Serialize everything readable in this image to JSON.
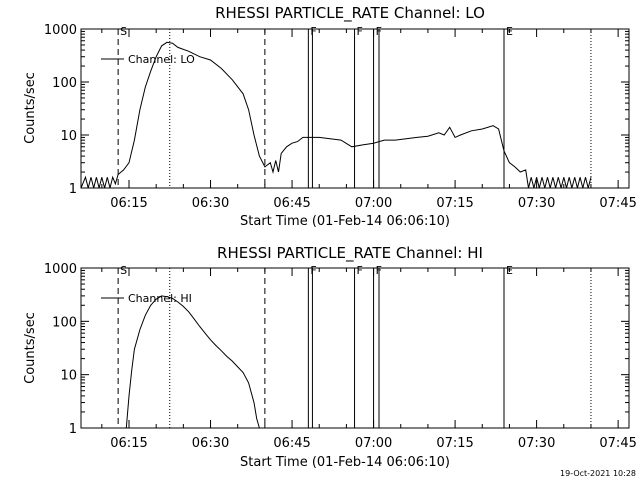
{
  "footer": {
    "date": "19-Oct-2021 10:28"
  },
  "colors": {
    "foreground": "#000000",
    "background": "#ffffff"
  },
  "chart_data": [
    {
      "type": "line",
      "title": "RHESSI PARTICLE_RATE Channel: LO",
      "xlabel": "Start Time (01-Feb-14 06:06:10)",
      "ylabel": "Counts/sec",
      "yscale": "log",
      "xlim": [
        "06:06:10",
        "07:47:00"
      ],
      "ylim": [
        1,
        1000
      ],
      "x_ticks": [
        "06:15",
        "06:30",
        "06:45",
        "07:00",
        "07:15",
        "07:30",
        "07:45"
      ],
      "y_ticks": [
        "1",
        "10",
        "100",
        "1000"
      ],
      "legend": {
        "label": "Channel: LO",
        "placement": "top-left"
      },
      "markers": [
        {
          "label": "S",
          "time": "06:13:00",
          "style": "dashed"
        },
        {
          "label": "",
          "time": "06:22:30",
          "style": "dotted"
        },
        {
          "label": "",
          "time": "06:40:00",
          "style": "dashed"
        },
        {
          "label": "F",
          "time": "06:48:00",
          "style": "solid"
        },
        {
          "label": "",
          "time": "06:48:45",
          "style": "solid"
        },
        {
          "label": "F",
          "time": "06:56:30",
          "style": "solid"
        },
        {
          "label": "F",
          "time": "07:00:00",
          "style": "solid"
        },
        {
          "label": "",
          "time": "07:01:00",
          "style": "solid"
        },
        {
          "label": "E",
          "time": "07:24:00",
          "style": "solid"
        },
        {
          "label": "",
          "time": "07:40:00",
          "style": "dotted"
        }
      ],
      "series": [
        {
          "x": [
            "06:06:10",
            "06:07:00",
            "06:07:30",
            "06:08:00",
            "06:08:30",
            "06:09:00",
            "06:09:30",
            "06:10:00",
            "06:10:30",
            "06:11:00",
            "06:11:30",
            "06:12:00",
            "06:12:30",
            "06:13:00",
            "06:14:00",
            "06:15:00",
            "06:16:00",
            "06:17:00",
            "06:18:00",
            "06:19:00",
            "06:20:00",
            "06:21:00",
            "06:22:00",
            "06:23:00",
            "06:24:00",
            "06:26:00",
            "06:28:00",
            "06:30:00",
            "06:32:00",
            "06:34:00",
            "06:36:00",
            "06:37:00",
            "06:38:00",
            "06:39:00",
            "06:40:00",
            "06:41:00",
            "06:41:30",
            "06:42:00",
            "06:42:30",
            "06:43:00",
            "06:44:00",
            "06:45:00",
            "06:46:00",
            "06:47:00",
            "06:48:00",
            "06:50:00",
            "06:52:00",
            "06:54:00",
            "06:56:00",
            "06:58:00",
            "07:00:00",
            "07:02:00",
            "07:04:00",
            "07:06:00",
            "07:08:00",
            "07:10:00",
            "07:12:00",
            "07:13:00",
            "07:14:00",
            "07:15:00",
            "07:16:00",
            "07:18:00",
            "07:20:00",
            "07:22:00",
            "07:23:00",
            "07:24:00",
            "07:25:00",
            "07:26:00",
            "07:27:00",
            "07:28:00",
            "07:28:30",
            "07:29:00",
            "07:29:30",
            "07:30:00",
            "07:30:30",
            "07:31:00",
            "07:31:30",
            "07:32:00",
            "07:32:30",
            "07:33:00",
            "07:33:30",
            "07:34:00",
            "07:34:30",
            "07:35:00",
            "07:35:30",
            "07:36:00",
            "07:36:30",
            "07:37:00",
            "07:37:30",
            "07:38:00",
            "07:38:30",
            "07:39:00",
            "07:39:30",
            "07:40:00"
          ],
          "y": [
            1,
            1.6,
            1,
            1.6,
            1,
            1.6,
            1,
            1.6,
            1,
            1.6,
            1,
            1.6,
            1.2,
            1.8,
            2.2,
            3,
            8,
            30,
            80,
            160,
            300,
            480,
            560,
            540,
            450,
            380,
            300,
            260,
            180,
            110,
            60,
            30,
            10,
            4,
            2.5,
            3,
            2,
            3.3,
            2,
            4.5,
            6,
            7,
            7.5,
            9,
            9,
            9,
            8.5,
            8,
            6,
            6.5,
            7,
            8,
            8,
            8.5,
            9,
            9.5,
            11,
            10,
            14,
            9,
            10,
            12,
            13,
            15,
            13,
            5,
            3,
            2.5,
            2,
            2.2,
            1,
            1.6,
            1,
            1.6,
            1,
            1.6,
            1,
            1.6,
            1,
            1.6,
            1,
            1.6,
            1,
            1.6,
            1,
            1.6,
            1,
            1.6,
            1,
            1.6,
            1,
            1.6,
            1,
            1.6
          ]
        }
      ]
    },
    {
      "type": "line",
      "title": "RHESSI PARTICLE_RATE Channel: HI",
      "xlabel": "Start Time (01-Feb-14 06:06:10)",
      "ylabel": "Counts/sec",
      "yscale": "log",
      "xlim": [
        "06:06:10",
        "07:47:00"
      ],
      "ylim": [
        1,
        1000
      ],
      "x_ticks": [
        "06:15",
        "06:30",
        "06:45",
        "07:00",
        "07:15",
        "07:30",
        "07:45"
      ],
      "y_ticks": [
        "1",
        "10",
        "100",
        "1000"
      ],
      "legend": {
        "label": "Channel: HI",
        "placement": "top-left"
      },
      "markers": [
        {
          "label": "S",
          "time": "06:13:00",
          "style": "dashed"
        },
        {
          "label": "",
          "time": "06:22:30",
          "style": "dotted"
        },
        {
          "label": "",
          "time": "06:40:00",
          "style": "dashed"
        },
        {
          "label": "F",
          "time": "06:48:00",
          "style": "solid"
        },
        {
          "label": "",
          "time": "06:48:45",
          "style": "solid"
        },
        {
          "label": "F",
          "time": "06:56:30",
          "style": "solid"
        },
        {
          "label": "F",
          "time": "07:00:00",
          "style": "solid"
        },
        {
          "label": "",
          "time": "07:01:00",
          "style": "solid"
        },
        {
          "label": "E",
          "time": "07:24:00",
          "style": "solid"
        },
        {
          "label": "",
          "time": "07:40:00",
          "style": "dotted"
        }
      ],
      "series": [
        {
          "x": [
            "06:14:30",
            "06:15:00",
            "06:15:30",
            "06:16:00",
            "06:17:00",
            "06:18:00",
            "06:19:00",
            "06:20:00",
            "06:21:00",
            "06:22:00",
            "06:23:00",
            "06:24:00",
            "06:25:00",
            "06:26:00",
            "06:27:00",
            "06:28:00",
            "06:29:00",
            "06:30:00",
            "06:31:00",
            "06:32:00",
            "06:33:00",
            "06:34:00",
            "06:35:00",
            "06:36:00",
            "06:37:00",
            "06:38:00",
            "06:38:30",
            "06:39:00"
          ],
          "y": [
            1,
            4,
            12,
            30,
            70,
            130,
            200,
            260,
            300,
            290,
            270,
            230,
            190,
            150,
            110,
            80,
            60,
            45,
            35,
            28,
            22,
            18,
            14,
            11,
            7,
            3,
            1.5,
            1
          ]
        }
      ]
    }
  ]
}
